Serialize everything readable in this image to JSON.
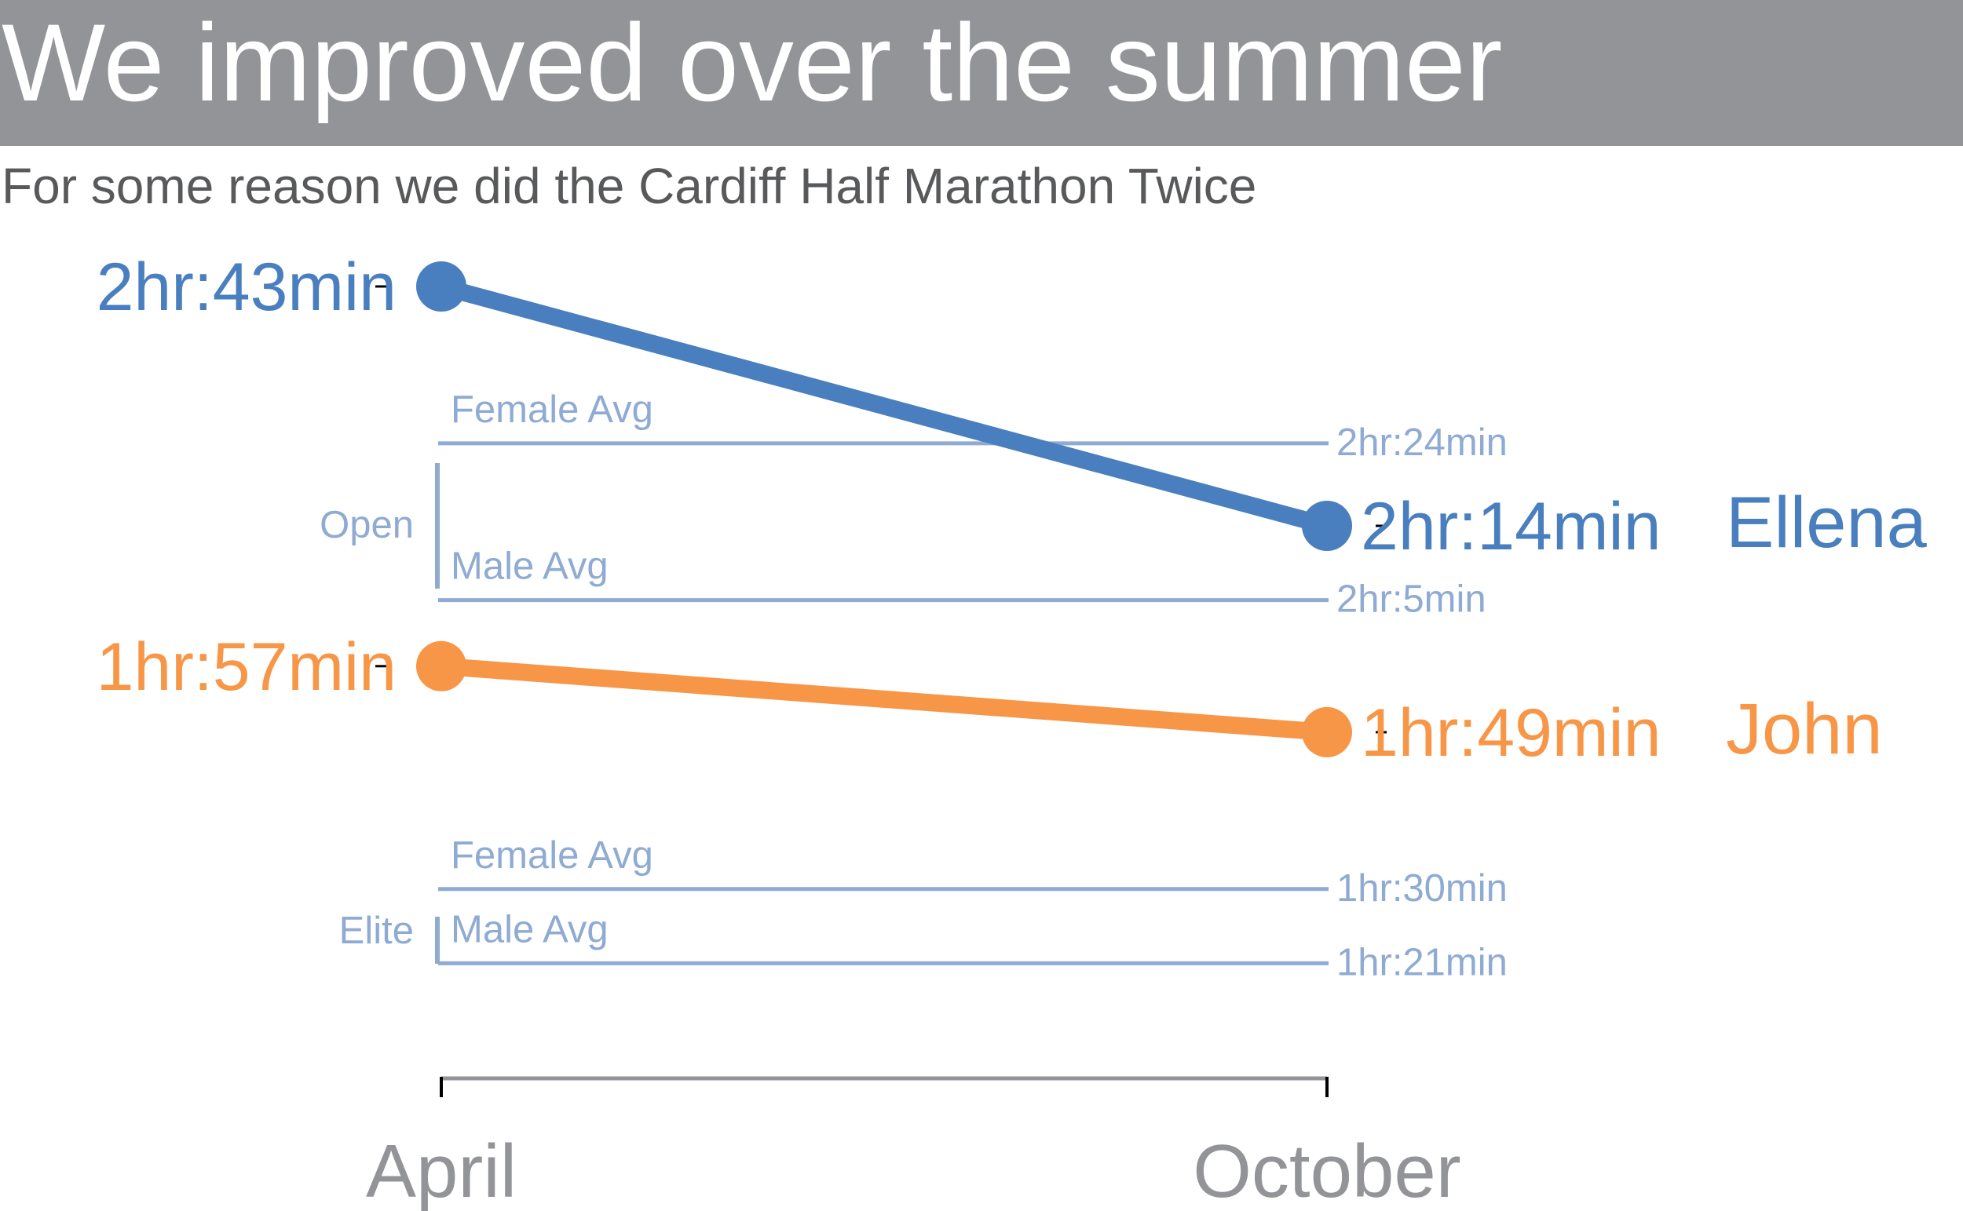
{
  "title": "We improved over the summer",
  "subtitle": "For some reason we did the Cardiff Half Marathon Twice",
  "colors": {
    "ellena": "#4a7fbf",
    "john": "#f79646",
    "reference": "#8fabd3",
    "axis": "#939497",
    "title_bg": "#939497"
  },
  "chart_data": {
    "type": "line",
    "categories": [
      "April",
      "October"
    ],
    "y_unit": "minutes",
    "ylim": [
      70,
      170
    ],
    "y_reversed": true,
    "grid": false,
    "series": [
      {
        "name": "Ellena",
        "values": [
          163,
          134
        ],
        "labels": [
          "2hr:43min",
          "2hr:14min"
        ],
        "color": "#4a7fbf"
      },
      {
        "name": "John",
        "values": [
          117,
          109
        ],
        "labels": [
          "1hr:57min",
          "1hr:49min"
        ],
        "color": "#f79646"
      }
    ],
    "reference_groups": [
      {
        "group": "Open",
        "lines": [
          {
            "name": "Female Avg",
            "value": 144,
            "label": "2hr:24min"
          },
          {
            "name": "Male Avg",
            "value": 125,
            "label": "2hr:5min"
          }
        ]
      },
      {
        "group": "Elite",
        "lines": [
          {
            "name": "Female Avg",
            "value": 90,
            "label": "1hr:30min"
          },
          {
            "name": "Male Avg",
            "value": 81,
            "label": "1hr:21min"
          }
        ]
      }
    ]
  }
}
